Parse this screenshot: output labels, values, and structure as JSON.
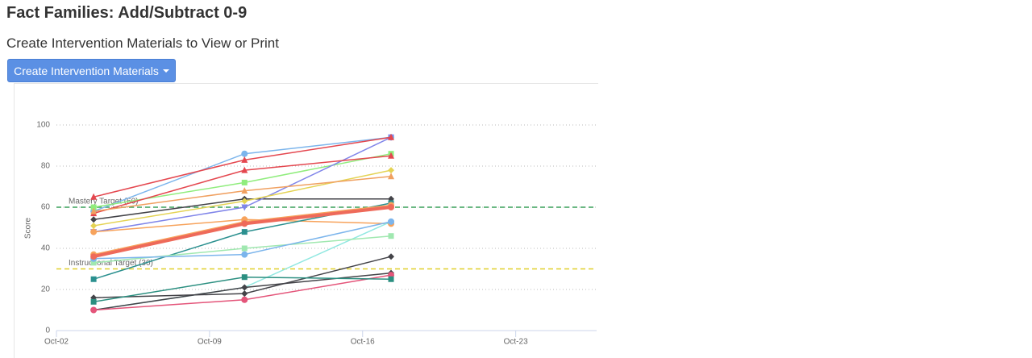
{
  "header": {
    "title": "Fact Families: Add/Subtract 0-9",
    "subtitle": "Create Intervention Materials to View or Print",
    "button": "Create Intervention Materials"
  },
  "chart_data": {
    "type": "line",
    "y_label": "Score",
    "x": [
      3.7,
      10.6,
      17.3
    ],
    "xlim": [
      2,
      26.7
    ],
    "xticks": [
      {
        "value": 2,
        "label": "Oct-02"
      },
      {
        "value": 9,
        "label": "Oct-09"
      },
      {
        "value": 16,
        "label": "Oct-16"
      },
      {
        "value": 23,
        "label": "Oct-23"
      }
    ],
    "ylim": [
      0,
      105
    ],
    "yticks": [
      0,
      20,
      40,
      60,
      80,
      100
    ],
    "grid": true,
    "reference_lines": [
      {
        "label": "Mastery Target (60)",
        "value": 60,
        "color": "#3aa15a"
      },
      {
        "label": "Instructional Target (30)",
        "value": 30,
        "color": "#e0cf2a"
      }
    ],
    "series": [
      {
        "color": "#7cb5ec",
        "marker": "circle",
        "values": [
          58,
          86,
          94
        ]
      },
      {
        "color": "#434348",
        "marker": "diamond",
        "values": [
          54,
          64,
          64
        ]
      },
      {
        "color": "#90ed7d",
        "marker": "square",
        "values": [
          60,
          72,
          86
        ]
      },
      {
        "color": "#8085e9",
        "marker": "triangle-down",
        "values": [
          48,
          60,
          94
        ]
      },
      {
        "color": "#e4474f",
        "marker": "triangle",
        "values": [
          65,
          83,
          94
        ]
      },
      {
        "color": "#e4474f",
        "marker": "triangle",
        "values": [
          57,
          78,
          85
        ]
      },
      {
        "color": "#e4d354",
        "marker": "diamond",
        "values": [
          51,
          63,
          78
        ]
      },
      {
        "color": "#f0a060",
        "marker": "triangle",
        "values": [
          58,
          68,
          75
        ]
      },
      {
        "color": "#f7a35c",
        "marker": "circle",
        "values": [
          48,
          54,
          52
        ]
      },
      {
        "color": "#2b908f",
        "marker": "square",
        "values": [
          25,
          48,
          62
        ]
      },
      {
        "color": "#91e8e1",
        "marker": "diamond",
        "values": [
          10,
          21,
          53
        ]
      },
      {
        "color": "#434348",
        "marker": "diamond",
        "values": [
          16,
          18,
          36
        ]
      },
      {
        "color": "#434348",
        "marker": "diamond",
        "values": [
          10,
          21,
          28
        ]
      },
      {
        "color": "#e4557a",
        "marker": "circle",
        "values": [
          10,
          15,
          27
        ]
      },
      {
        "color": "#2b8f80",
        "marker": "square",
        "values": [
          14,
          26,
          25
        ]
      },
      {
        "color": "#a0e8b0",
        "marker": "square",
        "values": [
          33,
          40,
          46
        ]
      },
      {
        "color": "#7cb5ec",
        "marker": "circle",
        "values": [
          35,
          37,
          53
        ]
      },
      {
        "color": "#f7a35c",
        "marker": "circle",
        "values": [
          37,
          53,
          61
        ]
      },
      {
        "color": "#ee6a5a",
        "marker": "circle",
        "width": 4,
        "values": [
          36,
          52,
          60
        ]
      }
    ]
  }
}
